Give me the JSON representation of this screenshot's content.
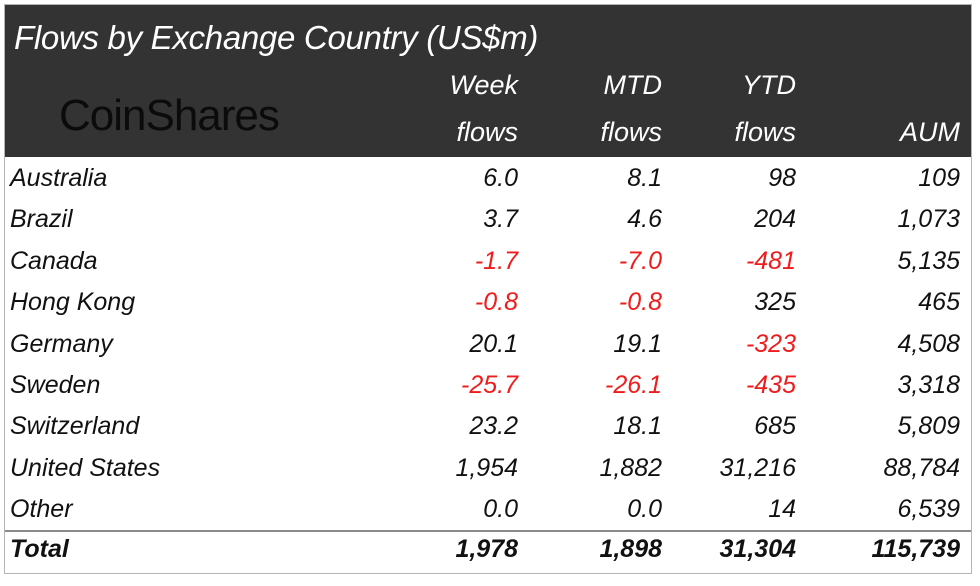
{
  "title": "Flows by Exchange Country (US$m)",
  "logo_text": "CoinShares",
  "colors": {
    "header_bg": "#333333",
    "negative": "#ee1c1c",
    "text": "#111111"
  },
  "chart_data": {
    "type": "table",
    "title": "Flows by Exchange Country (US$m)",
    "columns": [
      {
        "line1": "Week",
        "line2": "flows"
      },
      {
        "line1": "MTD",
        "line2": "flows"
      },
      {
        "line1": "YTD",
        "line2": "flows"
      },
      {
        "line1": "",
        "line2": "AUM"
      }
    ],
    "rows": [
      {
        "country": "Australia",
        "values": [
          "6.0",
          "8.1",
          "98",
          "109"
        ]
      },
      {
        "country": "Brazil",
        "values": [
          "3.7",
          "4.6",
          "204",
          "1,073"
        ]
      },
      {
        "country": "Canada",
        "values": [
          "-1.7",
          "-7.0",
          "-481",
          "5,135"
        ]
      },
      {
        "country": "Hong Kong",
        "values": [
          "-0.8",
          "-0.8",
          "325",
          "465"
        ]
      },
      {
        "country": "Germany",
        "values": [
          "20.1",
          "19.1",
          "-323",
          "4,508"
        ]
      },
      {
        "country": "Sweden",
        "values": [
          "-25.7",
          "-26.1",
          "-435",
          "3,318"
        ]
      },
      {
        "country": "Switzerland",
        "values": [
          "23.2",
          "18.1",
          "685",
          "5,809"
        ]
      },
      {
        "country": "United States",
        "values": [
          "1,954",
          "1,882",
          "31,216",
          "88,784"
        ]
      },
      {
        "country": "Other",
        "values": [
          "0.0",
          "0.0",
          "14",
          "6,539"
        ]
      }
    ],
    "total": {
      "country": "Total",
      "values": [
        "1,978",
        "1,898",
        "31,304",
        "115,739"
      ]
    }
  }
}
